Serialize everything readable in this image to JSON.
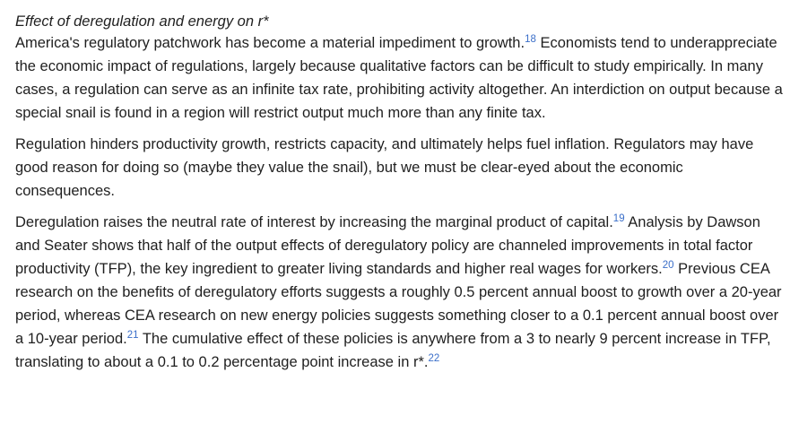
{
  "article": {
    "heading": "Effect of deregulation and energy on r*",
    "paragraphs": [
      {
        "segments": [
          {
            "text": "America's regulatory patchwork has become a material impediment to growth."
          },
          {
            "footnote": "18"
          },
          {
            "text": " Economists tend to underappreciate the economic impact of regulations, largely because qualitative factors can be difficult to study empirically. In many cases, a regulation can serve as an infinite tax rate, prohibiting activity altogether. An interdiction on output because a special snail is found in a region will restrict output much more than any finite tax."
          }
        ]
      },
      {
        "segments": [
          {
            "text": "Regulation hinders productivity growth, restricts capacity, and ultimately helps fuel inflation. Regulators may have good reason for doing so (maybe they value the snail), but we must be clear-eyed about the economic consequences."
          }
        ]
      },
      {
        "segments": [
          {
            "text": "Deregulation raises the neutral rate of interest by increasing the marginal product of capital."
          },
          {
            "footnote": "19"
          },
          {
            "text": " Analysis by Dawson and Seater shows that half of the output effects of deregulatory policy are channeled improvements in total factor productivity (TFP), the key ingredient to greater living standards and higher real wages for workers."
          },
          {
            "footnote": "20"
          },
          {
            "text": " Previous CEA research on the benefits of deregulatory efforts suggests a roughly 0.5 percent annual boost to growth over a 20-year period, whereas CEA research on new energy policies suggests something closer to a 0.1 percent annual boost over a 10-year period."
          },
          {
            "footnote": "21"
          },
          {
            "text": " The cumulative effect of these policies is anywhere from a 3 to nearly 9 percent increase in TFP, translating to about a 0.1 to 0.2 percentage point increase in r*."
          },
          {
            "footnote": "22"
          }
        ]
      }
    ]
  },
  "colors": {
    "text": "#1f1f1f",
    "footnote_link": "#3b6fc9",
    "background": "#ffffff"
  }
}
